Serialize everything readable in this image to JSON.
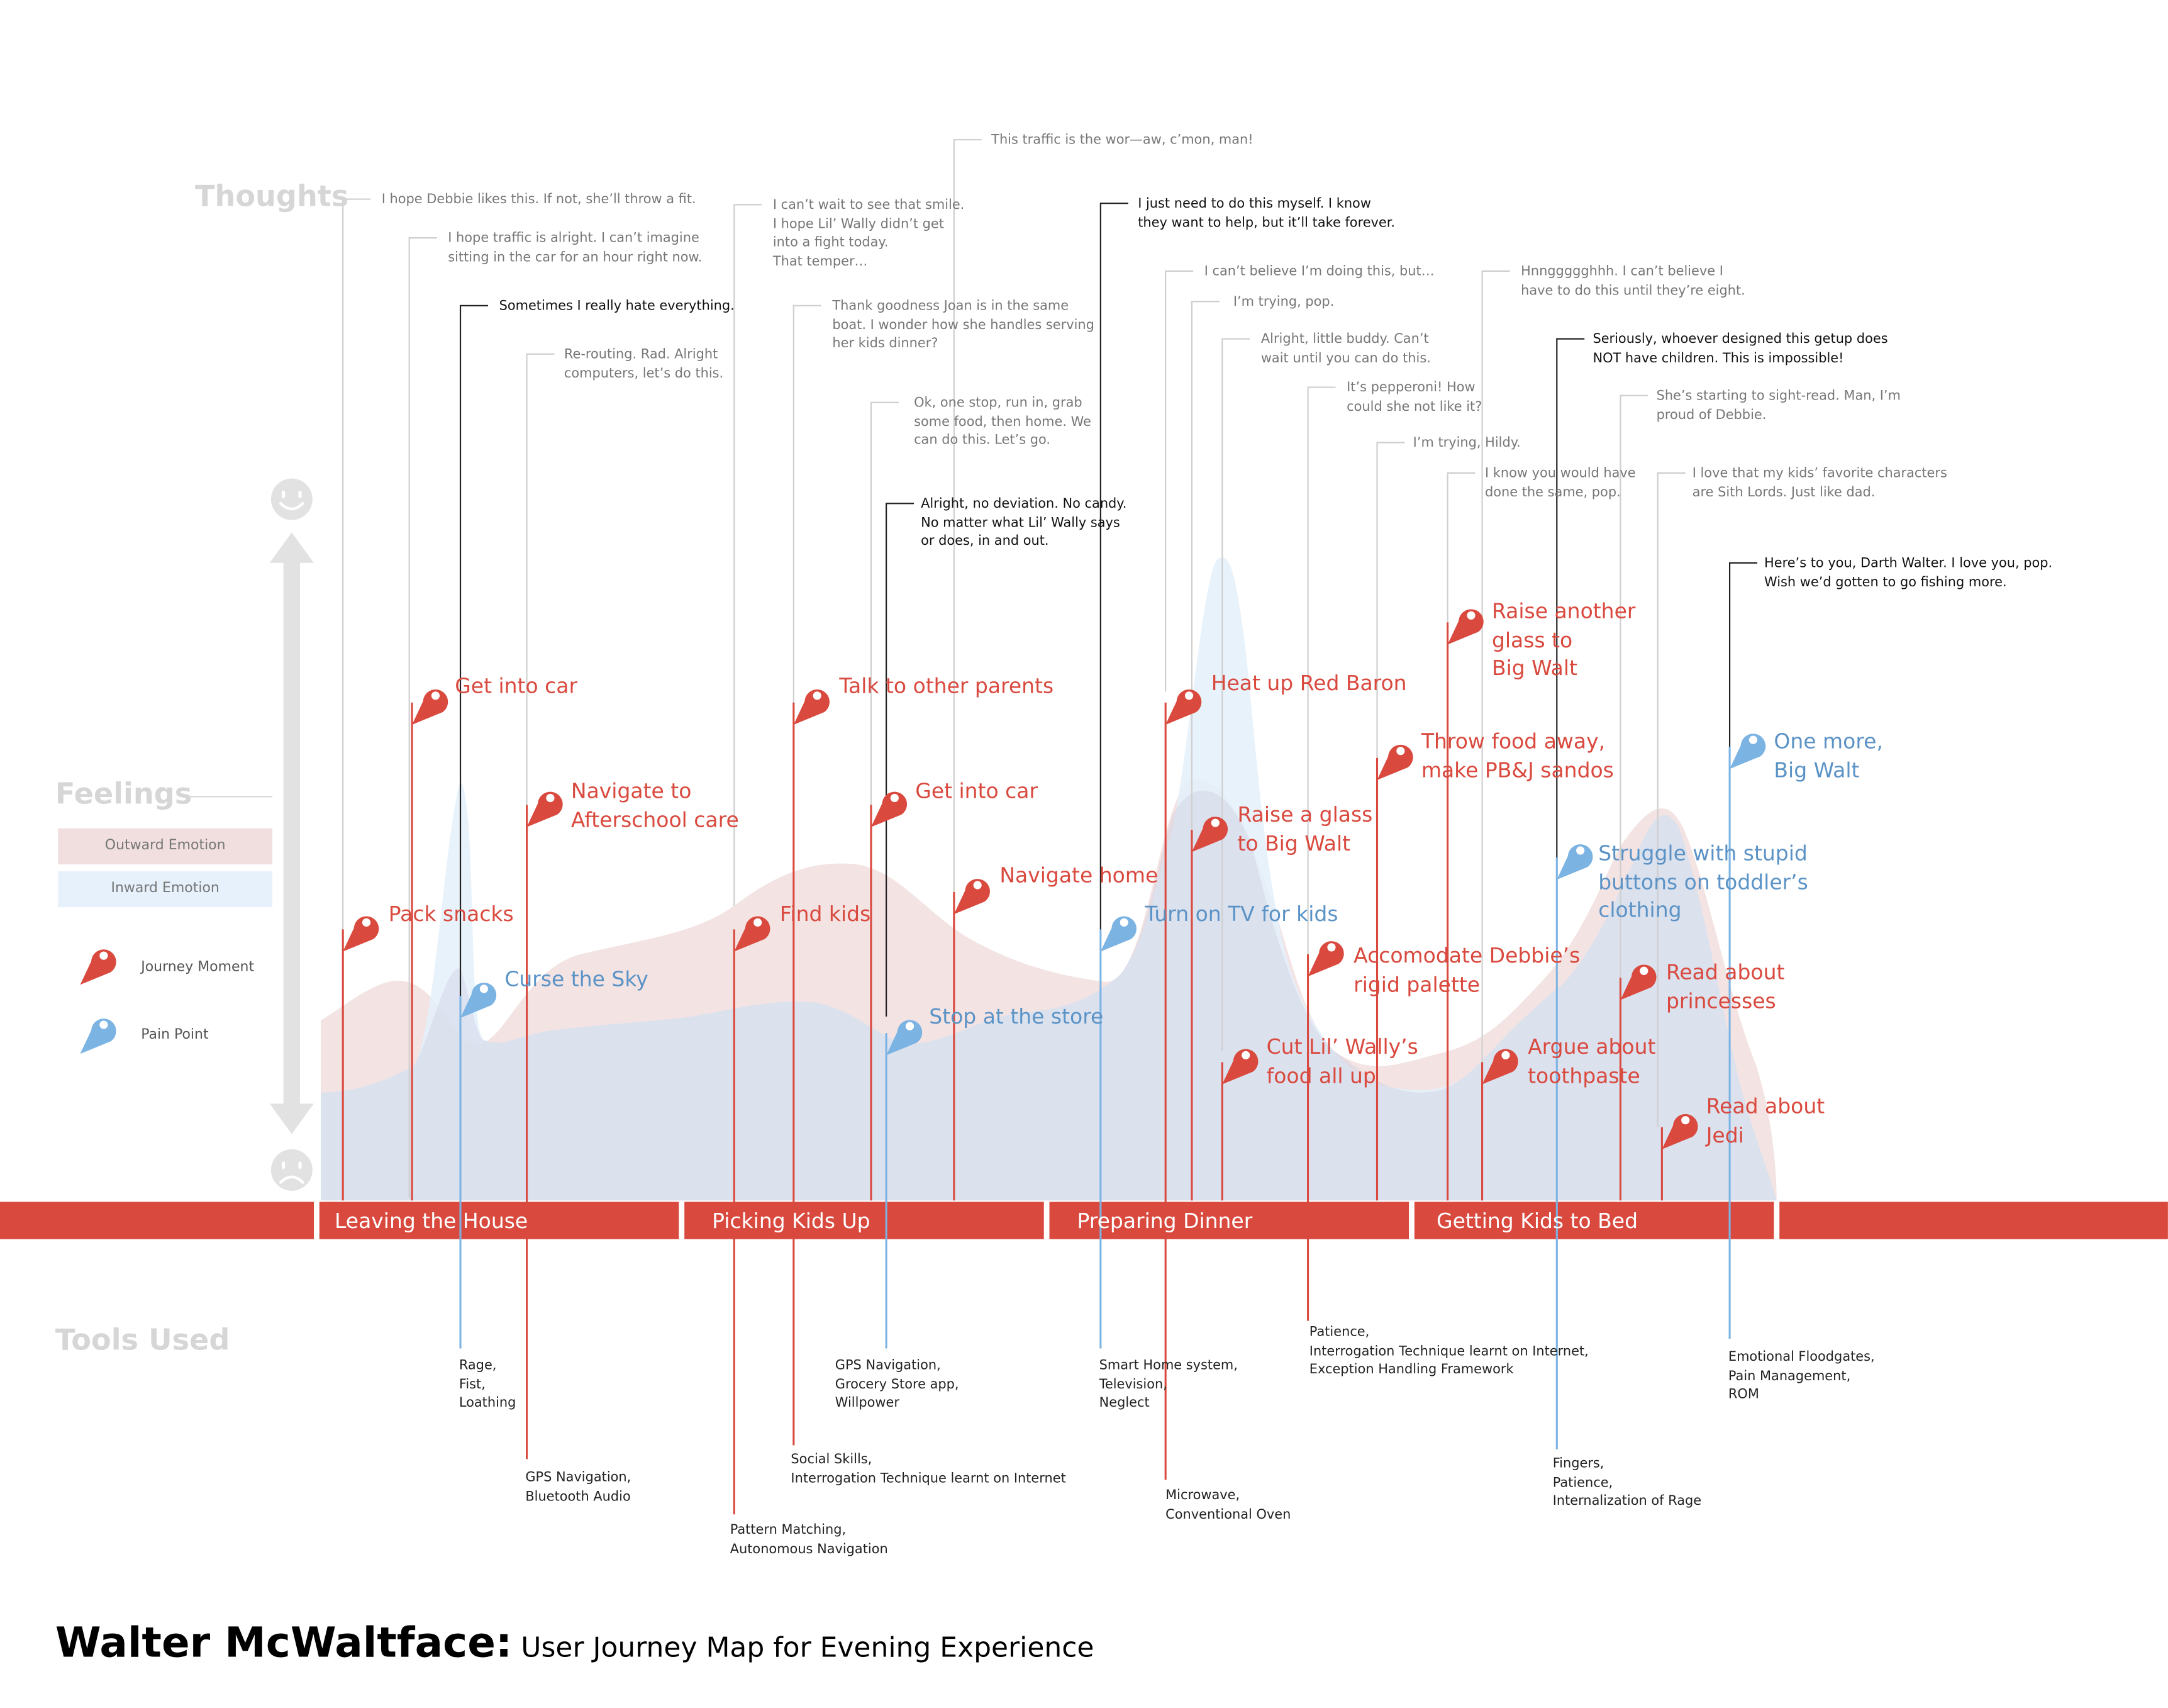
{
  "sections": {
    "thoughts": "Thoughts",
    "feelings": "Feelings",
    "tools": "Tools Used"
  },
  "legend": {
    "outward": "Outward Emotion",
    "inward": "Inward Emotion",
    "moment": "Journey Moment",
    "pain": "Pain Point"
  },
  "colors": {
    "red": "#d9493e",
    "blue": "#7bb3e3",
    "blue_text": "#5b93c6",
    "outward_fill": "#f1dede",
    "inward_fill": "#e6f1fb",
    "gray": "#e2e2e2"
  },
  "stages": [
    "Leaving the House",
    "Picking Kids Up",
    "Preparing Dinner",
    "Getting Kids to Bed"
  ],
  "thoughts": [
    "I hope Debbie likes this. If not, she’ll throw a fit.",
    "I hope traffic is alright. I can’t imagine\nsitting in the car for an hour right now.",
    "Sometimes I really hate everything.",
    "Re-routing. Rad. Alright\ncomputers, let’s do this.",
    "I can’t wait to see that smile.\nI hope Lil’ Wally didn’t get\ninto a fight today.\nThat temper…",
    "Thank goodness Joan is in the same\nboat. I wonder how she handles serving\nher kids dinner?",
    "Ok, one stop, run in, grab\nsome food, then home. We\ncan do this. Let’s go.",
    "Alright, no deviation. No candy.\nNo matter what Lil’ Wally says\nor does, in and out.",
    "This traffic is the wor—aw, c’mon, man!",
    "I just need to do this myself. I know\nthey want to help, but it’ll take forever.",
    "I can’t believe I’m doing this, but…",
    "I’m trying, pop.",
    "Alright, little buddy. Can’t\nwait until you can do this.",
    "It’s pepperoni! How\ncould she not like it?",
    "I’m trying, Hildy.",
    "Hnnggggghhh. I can’t believe I\nhave to do this until they’re eight.",
    "Seriously, whoever designed this getup does\nNOT have children. This is impossible!",
    "She’s starting to sight-read. Man, I’m\nproud of Debbie.",
    "I know you would have\ndone the same, pop.",
    "I love that my kids’ favorite characters\nare Sith Lords. Just like dad.",
    "Here’s to you, Darth Walter. I love you, pop.\nWish we’d gotten to go fishing more."
  ],
  "moments": [
    "Pack snacks",
    "Get into car",
    "Curse the Sky",
    "Navigate to\nAfterschool care",
    "Find kids",
    "Talk to other parents",
    "Get into car",
    "Stop at the store",
    "Navigate home",
    "Turn on TV for kids",
    "Heat up Red Baron",
    "Raise a glass\nto Big Walt",
    "Cut Lil’ Wally’s\nfood all up",
    "Accomodate Debbie’s\nrigid palette",
    "Throw food away,\nmake PB&J sandos",
    "Raise another\nglass to\nBig Walt",
    "Argue about\ntoothpaste",
    "Struggle with stupid\nbuttons on toddler’s\nclothing",
    "Read about\nprincesses",
    "Read about\nJedi",
    "One more,\nBig Walt"
  ],
  "tools": [
    "Rage,\nFist,\nLoathing",
    "GPS Navigation,\nBluetooth Audio",
    "Pattern Matching,\nAutonomous Navigation",
    "Social Skills,\nInterrogation Technique learnt on Internet",
    "GPS Navigation,\nGrocery Store app,\nWillpower",
    "Smart Home system,\nTelevision,\nNeglect",
    "Microwave,\nConventional Oven",
    "Patience,\nInterrogation Technique learnt on Internet,\nException Handling Framework",
    "Fingers,\nPatience,\nInternalization of Rage",
    "Emotional Floodgates,\nPain Management,\nROM"
  ],
  "title": {
    "name": "Walter McWaltface:",
    "subtitle": " User Journey Map for Evening Experience"
  }
}
